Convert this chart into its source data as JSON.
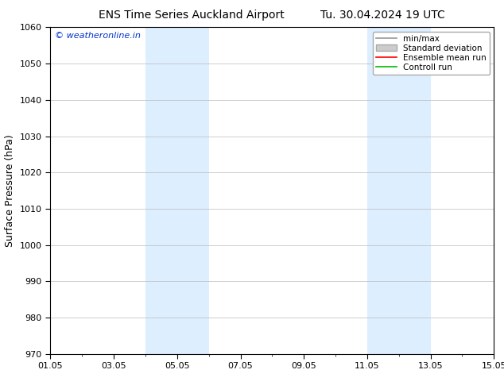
{
  "title_left": "ENS Time Series Auckland Airport",
  "title_right": "Tu. 30.04.2024 19 UTC",
  "ylabel": "Surface Pressure (hPa)",
  "ylim": [
    970,
    1060
  ],
  "yticks": [
    970,
    980,
    990,
    1000,
    1010,
    1020,
    1030,
    1040,
    1050,
    1060
  ],
  "xtick_labels": [
    "01.05",
    "03.05",
    "05.05",
    "07.05",
    "09.05",
    "11.05",
    "13.05",
    "15.05"
  ],
  "xtick_positions": [
    0,
    2,
    4,
    6,
    8,
    10,
    12,
    14
  ],
  "xlim": [
    0,
    14
  ],
  "shaded_bands": [
    {
      "x_start": 3.0,
      "x_end": 4.0,
      "color": "#ddeeff"
    },
    {
      "x_start": 4.0,
      "x_end": 5.0,
      "color": "#ddeeff"
    },
    {
      "x_start": 10.0,
      "x_end": 11.0,
      "color": "#ddeeff"
    },
    {
      "x_start": 11.0,
      "x_end": 12.0,
      "color": "#ddeeff"
    }
  ],
  "legend_entries": [
    {
      "label": "min/max",
      "color": "#999999",
      "lw": 1.2,
      "type": "line"
    },
    {
      "label": "Standard deviation",
      "color": "#cccccc",
      "lw": 6,
      "type": "patch"
    },
    {
      "label": "Ensemble mean run",
      "color": "#ff0000",
      "lw": 1.2,
      "type": "line"
    },
    {
      "label": "Controll run",
      "color": "#00bb00",
      "lw": 1.2,
      "type": "line"
    }
  ],
  "watermark": "© weatheronline.in",
  "watermark_color": "#0033cc",
  "background_color": "#ffffff",
  "plot_bg_color": "#ffffff",
  "grid_color": "#bbbbbb",
  "title_fontsize": 10,
  "ylabel_fontsize": 9,
  "tick_fontsize": 8,
  "legend_fontsize": 7.5
}
